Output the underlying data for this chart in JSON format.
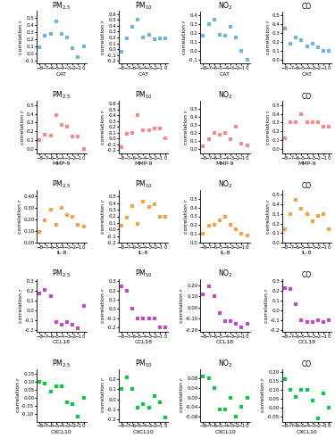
{
  "rows": [
    {
      "biomarker": "CAT",
      "color": "#6ab4e8",
      "plots": [
        {
          "title": "PM$_{2.5}$",
          "ylabel": "correlation r",
          "xlabel": "CAT",
          "x": [
            -8,
            -7,
            -6,
            -5,
            -4,
            -3,
            -2,
            -1,
            0
          ],
          "y": [
            0.08,
            0.25,
            0.27,
            0.45,
            0.28,
            0.22,
            0.07,
            -0.05,
            0.1
          ],
          "ylim": [
            -0.15,
            0.6
          ],
          "yticks": [
            -0.1,
            0.0,
            0.1,
            0.2,
            0.3,
            0.4,
            0.5
          ]
        },
        {
          "title": "PM$_{10}$",
          "ylabel": "correlation r",
          "xlabel": "CAT",
          "x": [
            -8,
            -7,
            -6,
            -5,
            -4,
            -3,
            -2,
            -1,
            0
          ],
          "y": [
            -0.05,
            0.18,
            0.38,
            0.5,
            0.2,
            0.25,
            0.17,
            0.19,
            0.18
          ],
          "ylim": [
            -0.25,
            0.65
          ],
          "yticks": [
            -0.2,
            -0.1,
            0.0,
            0.1,
            0.2,
            0.3,
            0.4,
            0.5,
            0.6
          ]
        },
        {
          "title": "NO$_2$",
          "ylabel": "correlation r",
          "xlabel": "CAT",
          "x": [
            -8,
            -7,
            -6,
            -5,
            -4,
            -3,
            -2,
            -1,
            0
          ],
          "y": [
            0.17,
            0.3,
            0.35,
            0.18,
            0.17,
            0.27,
            0.15,
            0.0,
            -0.1
          ],
          "ylim": [
            -0.15,
            0.45
          ],
          "yticks": [
            -0.1,
            0.0,
            0.1,
            0.2,
            0.3,
            0.4
          ]
        },
        {
          "title": "CO",
          "ylabel": "correlation r",
          "xlabel": "CAT",
          "x": [
            -8,
            -7,
            -6,
            -5,
            -4,
            -3,
            -2,
            -1,
            0
          ],
          "y": [
            0.35,
            0.18,
            0.25,
            0.22,
            0.15,
            0.18,
            0.14,
            0.1,
            0.1
          ],
          "ylim": [
            -0.05,
            0.55
          ],
          "yticks": [
            0.0,
            0.1,
            0.2,
            0.3,
            0.4,
            0.5
          ]
        }
      ]
    },
    {
      "biomarker": "MMP-9",
      "color": "#ff8888",
      "plots": [
        {
          "title": "PM$_{2.5}$",
          "ylabel": "correlation r",
          "xlabel": "MMP-9",
          "x": [
            -8,
            -7,
            -6,
            -5,
            -4,
            -3,
            -2,
            -1,
            0
          ],
          "y": [
            0.1,
            0.16,
            0.15,
            0.38,
            0.27,
            0.25,
            0.14,
            0.14,
            0.0
          ],
          "ylim": [
            -0.05,
            0.55
          ],
          "yticks": [
            0.0,
            0.1,
            0.2,
            0.3,
            0.4,
            0.5
          ]
        },
        {
          "title": "PM$_{10}$",
          "ylabel": "correlation r",
          "xlabel": "MMP-9",
          "x": [
            -8,
            -7,
            -6,
            -5,
            -4,
            -3,
            -2,
            -1,
            0
          ],
          "y": [
            -0.15,
            0.08,
            0.1,
            0.4,
            0.15,
            0.15,
            0.18,
            0.18,
            0.0
          ],
          "ylim": [
            -0.25,
            0.65
          ],
          "yticks": [
            -0.2,
            -0.1,
            0.0,
            0.1,
            0.2,
            0.3,
            0.4,
            0.5,
            0.6
          ]
        },
        {
          "title": "NO$_2$",
          "ylabel": "correlation r",
          "xlabel": "MMP-9",
          "x": [
            -8,
            -7,
            -6,
            -5,
            -4,
            -3,
            -2,
            -1,
            0
          ],
          "y": [
            0.03,
            0.12,
            0.2,
            0.18,
            0.2,
            0.12,
            0.28,
            0.07,
            0.05
          ],
          "ylim": [
            -0.05,
            0.6
          ],
          "yticks": [
            0.0,
            0.1,
            0.2,
            0.3,
            0.4,
            0.5
          ]
        },
        {
          "title": "CO",
          "ylabel": "correlation r",
          "xlabel": "MMP-9",
          "x": [
            -8,
            -7,
            -6,
            -5,
            -4,
            -3,
            -2,
            -1,
            0
          ],
          "y": [
            0.12,
            0.3,
            0.3,
            0.4,
            0.3,
            0.3,
            0.3,
            0.25,
            0.25
          ],
          "ylim": [
            -0.05,
            0.55
          ],
          "yticks": [
            0.0,
            0.1,
            0.2,
            0.3,
            0.4,
            0.5
          ]
        }
      ]
    },
    {
      "biomarker": "IL-8",
      "color": "#ffa040",
      "plots": [
        {
          "title": "PM$_{2.5}$",
          "ylabel": "correlation r",
          "xlabel": "IL-8",
          "x": [
            -8,
            -7,
            -6,
            -5,
            -4,
            -3,
            -2,
            -1,
            0
          ],
          "y": [
            0.09,
            0.19,
            0.28,
            0.15,
            0.3,
            0.24,
            0.22,
            0.15,
            0.14
          ],
          "ylim": [
            0.0,
            0.45
          ],
          "yticks": [
            0.0,
            0.1,
            0.2,
            0.3,
            0.4
          ]
        },
        {
          "title": "PM$_{10}$",
          "ylabel": "correlation r",
          "xlabel": "IL-8",
          "x": [
            -8,
            -7,
            -6,
            -5,
            -4,
            -3,
            -2,
            -1,
            0
          ],
          "y": [
            0.06,
            0.18,
            0.35,
            0.08,
            0.43,
            0.34,
            0.38,
            0.19,
            0.19
          ],
          "ylim": [
            -0.2,
            0.6
          ],
          "yticks": [
            -0.2,
            -0.1,
            0.0,
            0.1,
            0.2,
            0.3,
            0.4,
            0.5
          ]
        },
        {
          "title": "NO$_2$",
          "ylabel": "correlation r",
          "xlabel": "IL-8",
          "x": [
            -8,
            -7,
            -6,
            -5,
            -4,
            -3,
            -2,
            -1,
            0
          ],
          "y": [
            0.1,
            0.19,
            0.2,
            0.25,
            0.3,
            0.2,
            0.15,
            0.1,
            0.08
          ],
          "ylim": [
            0.0,
            0.6
          ],
          "yticks": [
            0.0,
            0.1,
            0.2,
            0.3,
            0.4,
            0.5
          ]
        },
        {
          "title": "CO",
          "ylabel": "correlation r",
          "xlabel": "IL-8",
          "x": [
            -8,
            -7,
            -6,
            -5,
            -4,
            -3,
            -2,
            -1,
            0
          ],
          "y": [
            0.14,
            0.3,
            0.45,
            0.35,
            0.3,
            0.22,
            0.28,
            0.3,
            0.14
          ],
          "ylim": [
            0.0,
            0.55
          ],
          "yticks": [
            0.0,
            0.1,
            0.2,
            0.3,
            0.4,
            0.5
          ]
        }
      ]
    },
    {
      "biomarker": "CCL18",
      "color": "#cc44cc",
      "plots": [
        {
          "title": "PM$_{2.5}$",
          "ylabel": "correlation r",
          "xlabel": "CCL18",
          "x": [
            -8,
            -7,
            -6,
            -5,
            -4,
            -3,
            -2,
            -1,
            0
          ],
          "y": [
            0.18,
            0.21,
            0.15,
            -0.12,
            -0.14,
            -0.12,
            -0.14,
            -0.18,
            0.05
          ],
          "ylim": [
            -0.22,
            0.32
          ],
          "yticks": [
            -0.2,
            -0.1,
            0.0,
            0.1,
            0.2,
            0.3
          ]
        },
        {
          "title": "PM$_{10}$",
          "ylabel": "correlation r",
          "xlabel": "CCL18",
          "x": [
            -8,
            -7,
            -6,
            -5,
            -4,
            -3,
            -2,
            -1,
            0
          ],
          "y": [
            0.25,
            0.2,
            0.0,
            -0.1,
            -0.1,
            -0.1,
            -0.1,
            -0.2,
            -0.2
          ],
          "ylim": [
            -0.25,
            0.32
          ],
          "yticks": [
            -0.2,
            -0.1,
            0.0,
            0.1,
            0.2,
            0.3
          ]
        },
        {
          "title": "NO$_2$",
          "ylabel": "correlation r",
          "xlabel": "CCL18",
          "x": [
            -8,
            -7,
            -6,
            -5,
            -4,
            -3,
            -2,
            -1,
            0
          ],
          "y": [
            0.12,
            0.19,
            0.1,
            -0.05,
            -0.12,
            -0.12,
            -0.15,
            -0.18,
            -0.15
          ],
          "ylim": [
            -0.22,
            0.25
          ],
          "yticks": [
            -0.2,
            -0.1,
            0.0,
            0.1,
            0.2
          ]
        },
        {
          "title": "CO",
          "ylabel": "correlation r",
          "xlabel": "CCL18",
          "x": [
            -8,
            -7,
            -6,
            -5,
            -4,
            -3,
            -2,
            -1,
            0
          ],
          "y": [
            0.23,
            0.22,
            0.07,
            -0.1,
            -0.12,
            -0.12,
            -0.1,
            -0.12,
            -0.1
          ],
          "ylim": [
            -0.22,
            0.32
          ],
          "yticks": [
            -0.2,
            -0.1,
            0.0,
            0.1,
            0.2,
            0.3
          ]
        }
      ]
    },
    {
      "biomarker": "CXCL10",
      "color": "#00cc44",
      "plots": [
        {
          "title": "PM$_{2.5}$",
          "ylabel": "correlation r",
          "xlabel": "CXCL10",
          "x": [
            -8,
            -7,
            -6,
            -5,
            -4,
            -3,
            -2,
            -1,
            0
          ],
          "y": [
            0.1,
            0.09,
            0.04,
            0.07,
            0.07,
            -0.03,
            -0.04,
            -0.12,
            0.0
          ],
          "ylim": [
            -0.15,
            0.18
          ],
          "yticks": [
            -0.1,
            -0.05,
            0.0,
            0.05,
            0.1,
            0.15
          ]
        },
        {
          "title": "PM$_{10}$",
          "ylabel": "correlation r",
          "xlabel": "CXCL10",
          "x": [
            -8,
            -7,
            -6,
            -5,
            -4,
            -3,
            -2,
            -1,
            0
          ],
          "y": [
            0.1,
            0.22,
            0.1,
            -0.08,
            -0.05,
            -0.08,
            0.03,
            -0.03,
            -0.18
          ],
          "ylim": [
            -0.22,
            0.3
          ],
          "yticks": [
            -0.2,
            -0.1,
            0.0,
            0.1,
            0.2
          ]
        },
        {
          "title": "NO$_2$",
          "ylabel": "correlation r",
          "xlabel": "CXCL10",
          "x": [
            -8,
            -7,
            -6,
            -5,
            -4,
            -3,
            -2,
            -1,
            0
          ],
          "y": [
            0.09,
            0.08,
            0.04,
            -0.05,
            -0.05,
            0.0,
            -0.08,
            -0.04,
            0.0
          ],
          "ylim": [
            -0.1,
            0.12
          ],
          "yticks": [
            -0.08,
            -0.04,
            0.0,
            0.04,
            0.08
          ]
        },
        {
          "title": "CO",
          "ylabel": "correlation r",
          "xlabel": "CXCL10",
          "x": [
            -8,
            -7,
            -6,
            -5,
            -4,
            -3,
            -2,
            -1,
            0
          ],
          "y": [
            0.16,
            0.1,
            0.06,
            0.1,
            0.1,
            0.04,
            -0.06,
            0.08,
            0.0
          ],
          "ylim": [
            -0.08,
            0.22
          ],
          "yticks": [
            -0.05,
            0.0,
            0.05,
            0.1,
            0.15,
            0.2
          ]
        }
      ]
    }
  ],
  "xticks": [
    -8,
    -7,
    -6,
    -5,
    -4,
    -3,
    -2,
    -1,
    0
  ],
  "marker_size": 8,
  "title_fontsize": 5.5,
  "label_fontsize": 4.5,
  "tick_fontsize": 4.0
}
